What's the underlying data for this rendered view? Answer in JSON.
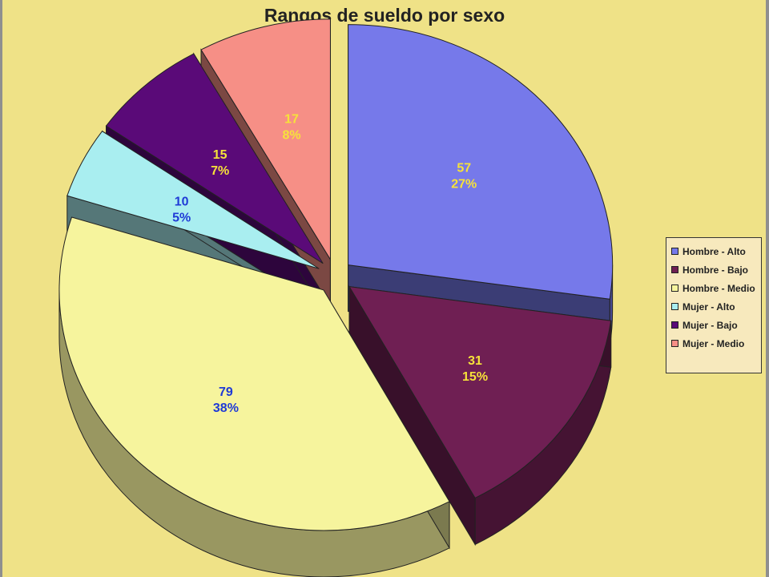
{
  "chart_data": {
    "type": "pie",
    "title": "Rangos de sueldo por sexo",
    "legend_position": "right",
    "style": "3d-exploded",
    "slices": [
      {
        "name": "Hombre - Alto",
        "value": 57,
        "percent": "27%",
        "color": "#7679ea",
        "label_color": "#f6e23a"
      },
      {
        "name": "Hombre - Bajo",
        "value": 31,
        "percent": "15%",
        "color": "#6f1f53",
        "label_color": "#f6e23a"
      },
      {
        "name": "Hombre - Medio",
        "value": 79,
        "percent": "38%",
        "color": "#f6f49d",
        "label_color": "#1f3ad6"
      },
      {
        "name": "Mujer - Alto",
        "value": 10,
        "percent": "5%",
        "color": "#a9eef0",
        "label_color": "#1f3ad6"
      },
      {
        "name": "Mujer - Bajo",
        "value": 15,
        "percent": "7%",
        "color": "#5a0a78",
        "label_color": "#f6e23a"
      },
      {
        "name": "Mujer - Medio",
        "value": 17,
        "percent": "8%",
        "color": "#f68f86",
        "label_color": "#f6e23a"
      }
    ]
  }
}
